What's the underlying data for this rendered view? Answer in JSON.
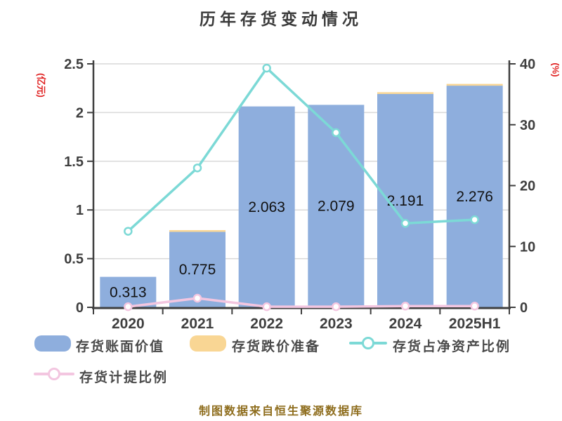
{
  "footer": {
    "text": "制图数据来自恒生聚源数据库"
  },
  "chart_data": {
    "type": "bar",
    "title": "历年存货变动情况",
    "categories": [
      "2020",
      "2021",
      "2022",
      "2023",
      "2024",
      "2025H1"
    ],
    "series": [
      {
        "name": "存货账面价值",
        "type": "bar",
        "yaxis": "left",
        "color": "#8eaedd",
        "values": [
          0.313,
          0.775,
          2.063,
          2.079,
          2.191,
          2.276
        ],
        "labels": [
          "0.313",
          "0.775",
          "2.063",
          "2.079",
          "2.191",
          "2.276"
        ]
      },
      {
        "name": "存货跌价准备",
        "type": "bar",
        "stacked_on": "存货账面价值",
        "yaxis": "left",
        "color": "#f9d694",
        "values": [
          0,
          0.012,
          0,
          0,
          0.012,
          0.012
        ]
      },
      {
        "name": "存货占净资产比例",
        "type": "line",
        "yaxis": "right",
        "color": "#7cd9d6",
        "values": [
          12.5,
          22.9,
          39.3,
          28.7,
          13.8,
          14.4
        ]
      },
      {
        "name": "存货计提比例",
        "type": "line",
        "yaxis": "right",
        "color": "#f3c6e0",
        "values": [
          0.1,
          1.5,
          0.1,
          0.1,
          0.2,
          0.2
        ]
      }
    ],
    "left_axis": {
      "title": "(亿元)",
      "min": 0,
      "max": 2.5,
      "tick_step": 0.5,
      "tick_labels": [
        "0",
        "0.5",
        "1",
        "1.5",
        "2",
        "2.5"
      ],
      "title_color": "#e02020"
    },
    "right_axis": {
      "title": "(%)",
      "min": 0,
      "max": 40,
      "tick_step": 10,
      "tick_labels": [
        "0",
        "10",
        "20",
        "30",
        "40"
      ],
      "title_color": "#e02020"
    },
    "grid": true,
    "legend_position": "bottom",
    "colors": {
      "axis": "#3f3f3f",
      "grid": "#d9d9d9",
      "tick_label": "#3f3f3f",
      "bar_value_label": "#111111",
      "title": "#3b3b3b",
      "legend_text": "#4a4a4a",
      "footer_text": "#8e6d1d"
    }
  }
}
